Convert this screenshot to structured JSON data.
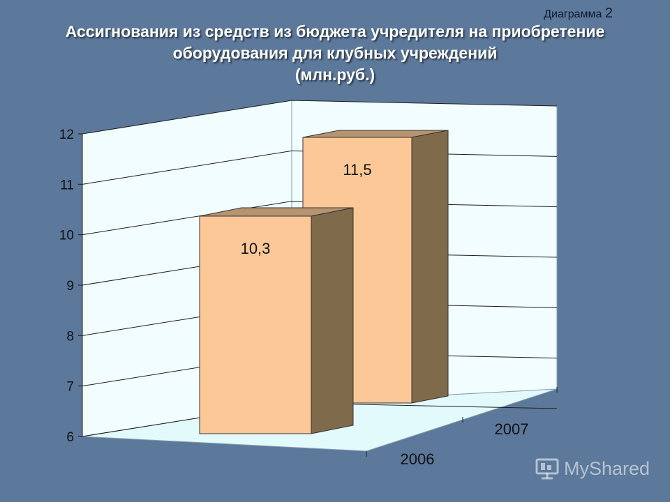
{
  "caption": {
    "label": "Диаграмма",
    "number": "2"
  },
  "title_lines": [
    "Ассигнования из средств из бюджета учредителя на приобретение",
    "оборудования для клубных учреждений",
    "(млн.руб.)"
  ],
  "watermark": "MyShared",
  "colors": {
    "bar_front": "#fcc898",
    "bar_side": "#7f6a4c",
    "bar_top": "#b69470",
    "wall": "#f1fdfe",
    "floor": "#e2fafc"
  },
  "chart_data": {
    "type": "bar",
    "style": "3d",
    "categories": [
      "2006",
      "2007"
    ],
    "values": [
      10.3,
      11.5
    ],
    "data_labels": [
      "10,3",
      "11,5"
    ],
    "yticks": [
      "6",
      "7",
      "8",
      "9",
      "10",
      "11",
      "12"
    ],
    "ylim": [
      6,
      12
    ],
    "grid": true,
    "legend": "none"
  }
}
